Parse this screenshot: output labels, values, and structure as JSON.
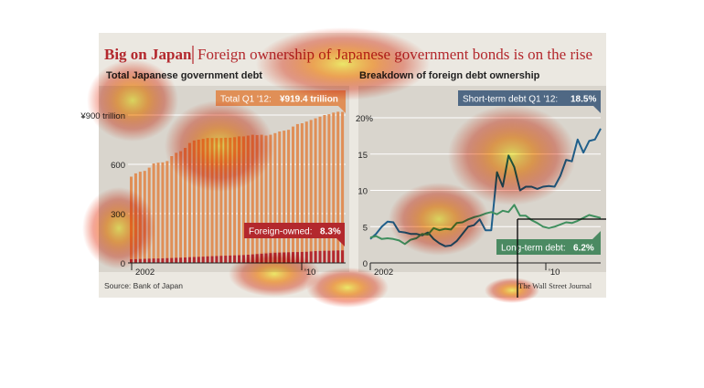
{
  "header": {
    "title_bold": "Big on Japan",
    "title_rest": "Foreign ownership of Japanese government bonds is on the rise"
  },
  "colors": {
    "title_red": "#b3282d",
    "panel_bg": "#d9d5cd",
    "total_bar": "#e08f57",
    "foreign_bar": "#b3282d",
    "short_line": "#1f5f8b",
    "long_line": "#3f8f5e",
    "short_callout": "#4f6884",
    "long_callout": "#4b8a62"
  },
  "chart_data": [
    {
      "type": "bar",
      "title": "Total Japanese government debt",
      "yunit_label": "¥900 trillion",
      "yticks": [
        0,
        300,
        600,
        900
      ],
      "ytick_labels": [
        "0",
        "300",
        "600",
        "¥900 trillion"
      ],
      "ylim": [
        0,
        930
      ],
      "xtick_labels": [
        "2002",
        "'10"
      ],
      "grid": true,
      "series": [
        {
          "name": "Total",
          "values": [
            525,
            545,
            555,
            560,
            580,
            605,
            610,
            612,
            620,
            650,
            670,
            680,
            700,
            730,
            745,
            750,
            755,
            760,
            760,
            760,
            760,
            762,
            762,
            765,
            770,
            770,
            775,
            780,
            778,
            780,
            775,
            780,
            790,
            800,
            805,
            810,
            830,
            845,
            850,
            860,
            870,
            880,
            890,
            900,
            905,
            915,
            920,
            919.4
          ]
        },
        {
          "name": "Foreign-owned",
          "values": [
            22,
            23,
            24,
            25,
            26,
            27,
            27,
            28,
            29,
            30,
            31,
            32,
            33,
            35,
            36,
            37,
            38,
            40,
            41,
            42,
            43,
            44,
            45,
            46,
            47,
            48,
            50,
            52,
            54,
            56,
            58,
            60,
            62,
            63,
            64,
            65,
            66,
            66,
            67,
            68,
            70,
            72,
            73,
            74,
            74,
            75,
            76,
            76.3
          ]
        }
      ],
      "callouts": {
        "total": {
          "label": "Total Q1 '12:",
          "value": "¥919.4 trillion"
        },
        "foreign": {
          "label": "Foreign-owned:",
          "value": "8.3%"
        }
      },
      "source": "Source: Bank of Japan"
    },
    {
      "type": "line",
      "title": "Breakdown of foreign debt ownership",
      "yticks": [
        0,
        5,
        10,
        15,
        20
      ],
      "ytick_labels": [
        "0",
        "5",
        "10",
        "15",
        "20%"
      ],
      "ylim": [
        0,
        21
      ],
      "xtick_labels": [
        "2002",
        "'10"
      ],
      "grid": true,
      "series": [
        {
          "name": "Short-term debt",
          "values": [
            3.3,
            4.0,
            5.0,
            5.7,
            5.6,
            4.3,
            4.2,
            4.0,
            4.0,
            3.8,
            4.2,
            3.3,
            2.7,
            2.3,
            2.4,
            3.0,
            4.0,
            5.0,
            5.2,
            6.0,
            4.5,
            4.5,
            12.5,
            10.5,
            14.8,
            13.2,
            10.0,
            10.5,
            10.5,
            10.2,
            10.5,
            10.6,
            10.5,
            12.0,
            14.2,
            14.0,
            17.0,
            15.2,
            16.8,
            17.0,
            18.5
          ]
        },
        {
          "name": "Long-term debt",
          "values": [
            3.5,
            3.7,
            3.3,
            3.4,
            3.3,
            3.1,
            2.6,
            3.2,
            3.4,
            4.0,
            3.9,
            4.8,
            4.5,
            4.7,
            4.6,
            5.5,
            5.6,
            6.0,
            6.3,
            6.5,
            6.8,
            7.0,
            6.7,
            7.2,
            7.0,
            8.0,
            6.5,
            6.5,
            5.9,
            5.5,
            5.0,
            4.8,
            5.0,
            5.3,
            5.6,
            5.5,
            5.8,
            6.2,
            6.6,
            6.4,
            6.2
          ]
        }
      ],
      "callouts": {
        "short": {
          "label": "Short-term debt Q1 '12:",
          "value": "18.5%"
        },
        "long": {
          "label": "Long-term debt:",
          "value": "6.2%"
        }
      },
      "credit": "The Wall Street Journal"
    }
  ]
}
